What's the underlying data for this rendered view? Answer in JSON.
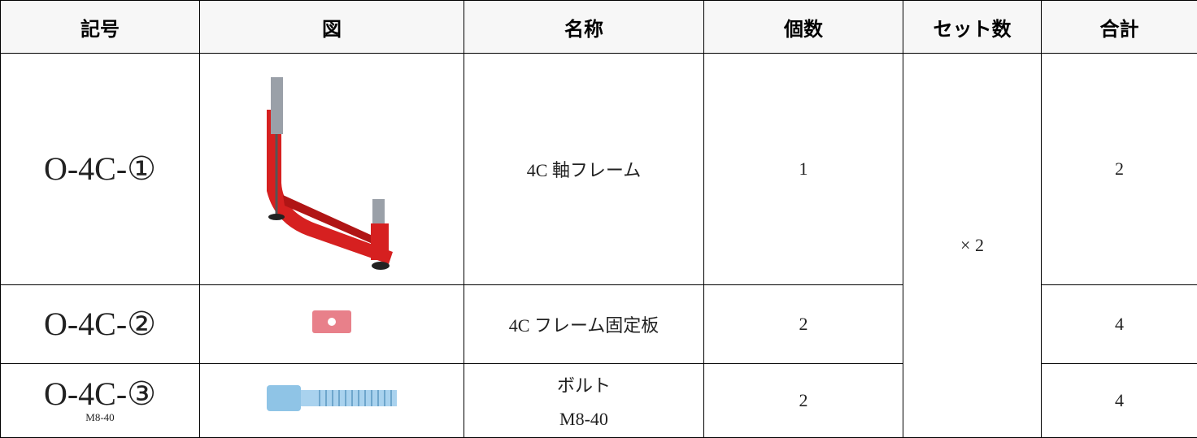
{
  "table": {
    "headers": [
      "記号",
      "図",
      "名称",
      "個数",
      "セット数",
      "合計"
    ],
    "rows": [
      {
        "code": "O-4C-①",
        "name": "4C 軸フレーム",
        "count": 1,
        "total": 2
      },
      {
        "code": "O-4C-②",
        "name": "4C フレーム固定板",
        "count": 2,
        "total": 4
      },
      {
        "code": "O-4C-③",
        "code_note": "M8-40",
        "name": "ボルト",
        "name_note": "M8-40",
        "count": 2,
        "total": 4
      }
    ],
    "sets": "× 2"
  }
}
